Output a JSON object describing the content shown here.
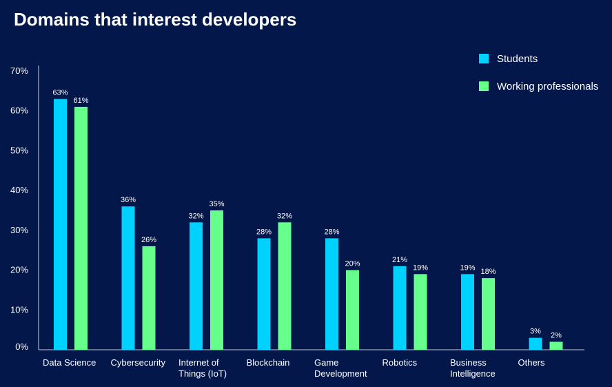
{
  "chart_data": {
    "type": "bar",
    "title": "Domains that interest developers",
    "xlabel": "",
    "ylabel": "",
    "ylim": [
      0,
      70
    ],
    "yticks": [
      0,
      10,
      20,
      30,
      40,
      50,
      60,
      70
    ],
    "ytick_labels": [
      "0%",
      "10%",
      "20%",
      "30%",
      "40%",
      "50%",
      "60%",
      "70%"
    ],
    "value_suffix": "%",
    "categories": [
      [
        "Data Science"
      ],
      [
        "Cybersecurity"
      ],
      [
        "Internet of",
        "Things (IoT)"
      ],
      [
        "Blockchain"
      ],
      [
        "Game",
        "Development"
      ],
      [
        "Robotics"
      ],
      [
        "Business",
        "Intelligence"
      ],
      [
        "Others"
      ]
    ],
    "series": [
      {
        "name": "Students",
        "color": "#00d2ff",
        "values": [
          63,
          36,
          32,
          28,
          28,
          21,
          19,
          3
        ]
      },
      {
        "name": "Working professionals",
        "color": "#66ff8c",
        "values": [
          61,
          26,
          35,
          32,
          20,
          19,
          18,
          2
        ]
      }
    ],
    "legend_position": "top-right",
    "grid": false
  }
}
